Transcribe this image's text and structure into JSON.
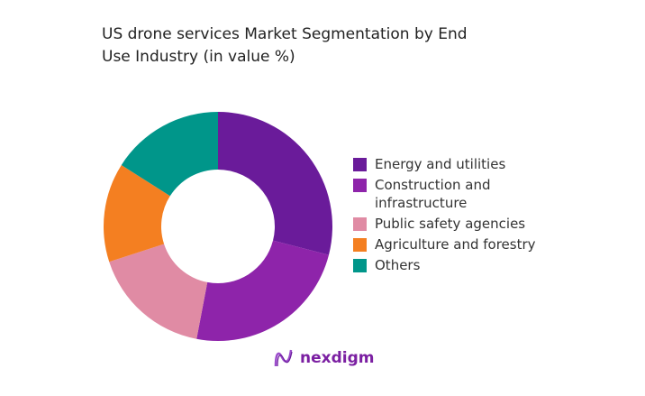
{
  "chart_data": {
    "type": "pie",
    "donut": true,
    "title": "US drone services Market Segmentation by End Use Industry (in value %)",
    "categories": [
      "Energy and utilities",
      "Construction and infrastructure",
      "Public safety agencies",
      "Agriculture and forestry",
      "Others"
    ],
    "values": [
      29,
      24,
      17,
      14,
      16
    ],
    "colors": [
      "#6a1b9a",
      "#8e24aa",
      "#e08ba4",
      "#f47f21",
      "#00968a"
    ],
    "legend_position": "right"
  },
  "brand": {
    "name": "nexdigm"
  }
}
